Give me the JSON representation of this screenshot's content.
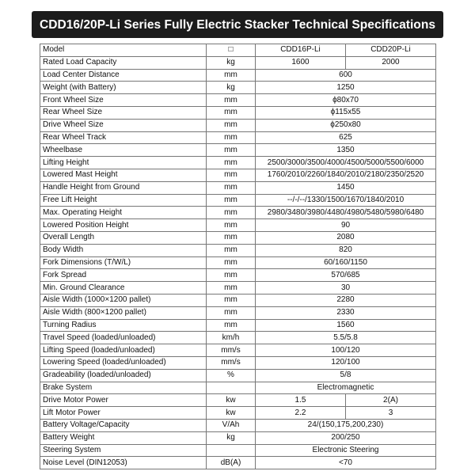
{
  "header": {
    "title": "CDD16/20P-Li Series Fully Electric Stacker Technical Specifications"
  },
  "table": {
    "rows": [
      {
        "label": "Model",
        "unit": "□",
        "values": [
          "CDD16P-Li",
          "CDD20P-Li"
        ]
      },
      {
        "label": "Rated Load Capacity",
        "unit": "kg",
        "values": [
          "1600",
          "2000"
        ]
      },
      {
        "label": "Load Center Distance",
        "unit": "mm",
        "values": [
          "600"
        ]
      },
      {
        "label": "Weight (with Battery)",
        "unit": "kg",
        "values": [
          "1250"
        ]
      },
      {
        "label": "Front Wheel Size",
        "unit": "mm",
        "values": [
          "ϕ80x70"
        ]
      },
      {
        "label": "Rear Wheel Size",
        "unit": "mm",
        "values": [
          "ϕ115x55"
        ]
      },
      {
        "label": "Drive Wheel Size",
        "unit": "mm",
        "values": [
          "ϕ250x80"
        ]
      },
      {
        "label": "Rear Wheel Track",
        "unit": "mm",
        "values": [
          "625"
        ]
      },
      {
        "label": "Wheelbase",
        "unit": "mm",
        "values": [
          "1350"
        ]
      },
      {
        "label": "Lifting Height",
        "unit": "mm",
        "values": [
          "2500/3000/3500/4000/4500/5000/5500/6000"
        ]
      },
      {
        "label": "Lowered Mast Height",
        "unit": "mm",
        "values": [
          "1760/2010/2260/1840/2010/2180/2350/2520"
        ]
      },
      {
        "label": "Handle Height from Ground",
        "unit": "mm",
        "values": [
          "1450"
        ]
      },
      {
        "label": "Free Lift Height",
        "unit": "mm",
        "values": [
          "--/-/--/1330/1500/1670/1840/2010"
        ]
      },
      {
        "label": "Max. Operating Height",
        "unit": "mm",
        "values": [
          "2980/3480/3980/4480/4980/5480/5980/6480"
        ]
      },
      {
        "label": "Lowered Position Height",
        "unit": "mm",
        "values": [
          "90"
        ]
      },
      {
        "label": "Overall Length",
        "unit": "mm",
        "values": [
          "2080"
        ]
      },
      {
        "label": "Body Width",
        "unit": "mm",
        "values": [
          "820"
        ]
      },
      {
        "label": "Fork Dimensions (T/W/L)",
        "unit": "mm",
        "values": [
          "60/160/1150"
        ]
      },
      {
        "label": "Fork Spread",
        "unit": "mm",
        "values": [
          "570/685"
        ]
      },
      {
        "label": "Min. Ground Clearance",
        "unit": "mm",
        "values": [
          "30"
        ]
      },
      {
        "label": "Aisle Width (1000×1200 pallet)",
        "unit": "mm",
        "values": [
          "2280"
        ]
      },
      {
        "label": "Aisle Width (800×1200 pallet)",
        "unit": "mm",
        "values": [
          "2330"
        ]
      },
      {
        "label": "Turning Radius",
        "unit": "mm",
        "values": [
          "1560"
        ]
      },
      {
        "label": "Travel Speed (loaded/unloaded)",
        "unit": "km/h",
        "values": [
          "5.5/5.8"
        ]
      },
      {
        "label": "Lifting Speed (loaded/unloaded)",
        "unit": "mm/s",
        "values": [
          "100/120"
        ]
      },
      {
        "label": "Lowering Speed (loaded/unloaded)",
        "unit": "mm/s",
        "values": [
          "120/100"
        ]
      },
      {
        "label": "Gradeability (loaded/unloaded)",
        "unit": "%",
        "values": [
          "5/8"
        ]
      },
      {
        "label": "Brake System",
        "values": [
          "Electromagnetic"
        ]
      },
      {
        "label": "Drive Motor Power",
        "unit": "kw",
        "values": [
          "1.5",
          "2(A)"
        ]
      },
      {
        "label": "Lift Motor Power",
        "unit": "kw",
        "values": [
          "2.2",
          "3"
        ]
      },
      {
        "label": "Battery Voltage/Capacity",
        "unit": "V/Ah",
        "values": [
          "24/(150,175,200,230)"
        ]
      },
      {
        "label": "Battery Weight",
        "unit": "kg",
        "values": [
          "200/250"
        ]
      },
      {
        "label": "Steering System",
        "values": [
          "Electronic Steering"
        ]
      },
      {
        "label": "Noise Level (DIN12053)",
        "unit": "dB(A)",
        "values": [
          "<70"
        ]
      }
    ]
  }
}
